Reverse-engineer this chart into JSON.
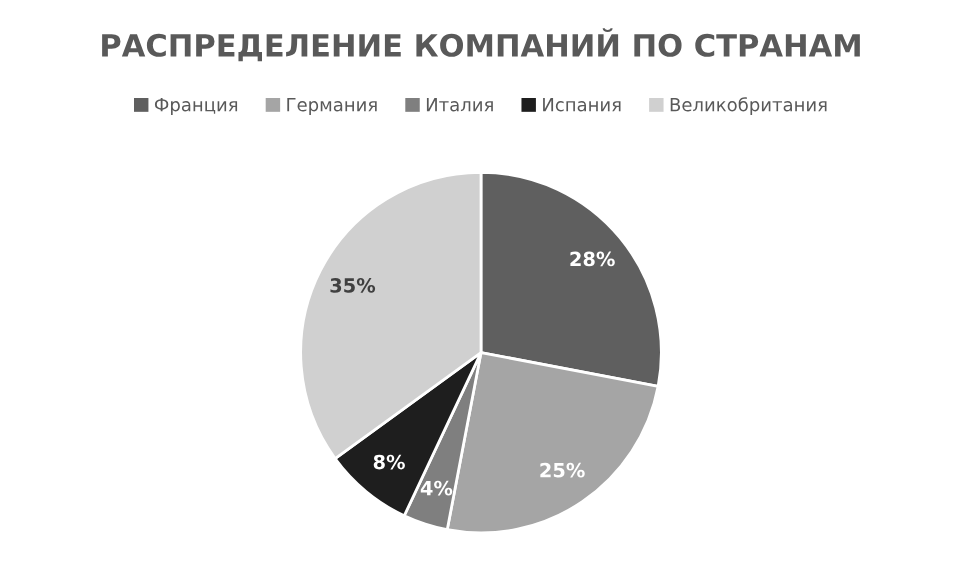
{
  "chart_data": {
    "type": "pie",
    "title": "РАСПРЕДЕЛЕНИЕ КОМПАНИЙ ПО СТРАНАМ",
    "categories": [
      "Франция",
      "Германия",
      "Италия",
      "Испания",
      "Великобритания"
    ],
    "values": [
      28,
      25,
      4,
      8,
      35
    ],
    "value_labels": [
      "28%",
      "25%",
      "4%",
      "8%",
      "35%"
    ],
    "colors": [
      "#5f5f5f",
      "#a5a5a5",
      "#7f7f7f",
      "#1e1e1e",
      "#d0d0d0"
    ],
    "legend": "top"
  }
}
